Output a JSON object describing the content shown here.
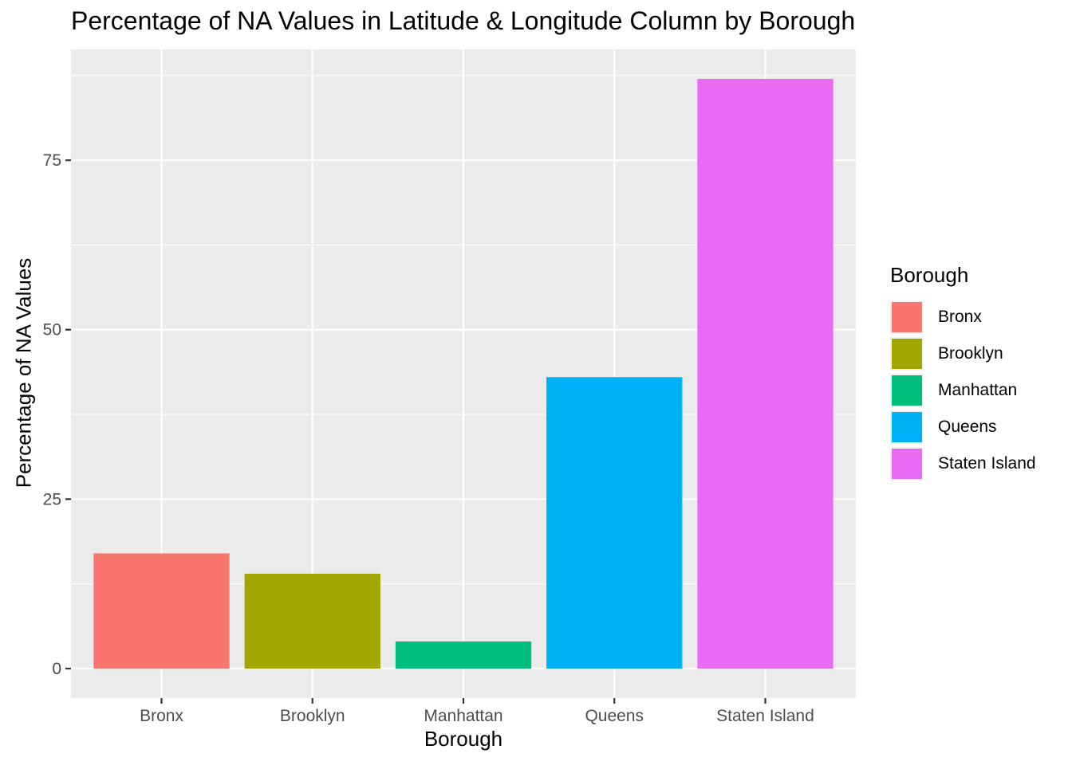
{
  "chart_data": {
    "type": "bar",
    "title": "Percentage of NA Values in Latitude & Longitude Column by Borough",
    "xlabel": "Borough",
    "ylabel": "Percentage of NA Values",
    "categories": [
      "Bronx",
      "Brooklyn",
      "Manhattan",
      "Queens",
      "Staten Island"
    ],
    "values": [
      17,
      14,
      4,
      43,
      87
    ],
    "colors": [
      "#F8766D",
      "#A3A500",
      "#00BF7D",
      "#00B0F6",
      "#E76BF3"
    ],
    "ylim": [
      -4.35,
      91.35
    ],
    "yticks": [
      0,
      25,
      50,
      75
    ],
    "ytick_labels": [
      "0",
      "25",
      "50",
      "75"
    ],
    "grid": true,
    "legend": {
      "title": "Borough",
      "placement": "right",
      "items": [
        "Bronx",
        "Brooklyn",
        "Manhattan",
        "Queens",
        "Staten Island"
      ]
    },
    "panel_background": "#EBEBEB",
    "grid_color": "#FFFFFF"
  }
}
